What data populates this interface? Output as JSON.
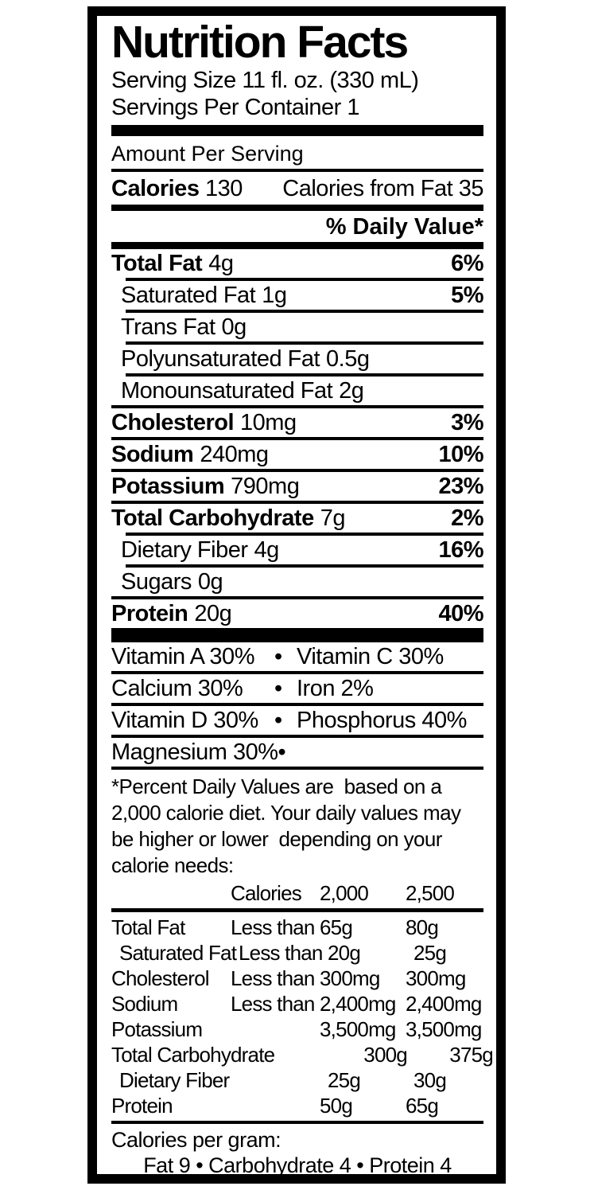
{
  "colors": {
    "text": "#000000",
    "background": "#ffffff"
  },
  "title": "Nutrition Facts",
  "serving": {
    "size": "Serving Size 11 fl. oz. (330 mL)",
    "per_container": "Servings Per Container 1"
  },
  "amount_per_serving": "Amount Per Serving",
  "calories": {
    "label": "Calories",
    "value": "130",
    "from_fat": "Calories from Fat 35"
  },
  "daily_value_header": "% Daily Value*",
  "nutrients": [
    {
      "name": "Total Fat",
      "amount": "4g",
      "dv": "6%",
      "bold": true,
      "indent": false
    },
    {
      "name": "Saturated Fat",
      "amount": "1g",
      "dv": "5%",
      "bold": false,
      "indent": true
    },
    {
      "name": "Trans Fat",
      "amount": "0g",
      "dv": "",
      "bold": false,
      "indent": true
    },
    {
      "name": "Polyunsaturated Fat",
      "amount": "0.5g",
      "dv": "",
      "bold": false,
      "indent": true
    },
    {
      "name": "Monounsaturated Fat",
      "amount": "2g",
      "dv": "",
      "bold": false,
      "indent": true
    },
    {
      "name": "Cholesterol",
      "amount": "10mg",
      "dv": "3%",
      "bold": true,
      "indent": false
    },
    {
      "name": "Sodium",
      "amount": "240mg",
      "dv": "10%",
      "bold": true,
      "indent": false
    },
    {
      "name": "Potassium",
      "amount": "790mg",
      "dv": "23%",
      "bold": true,
      "indent": false
    },
    {
      "name": "Total Carbohydrate",
      "amount": "7g",
      "dv": "2%",
      "bold": true,
      "indent": false
    },
    {
      "name": "Dietary Fiber",
      "amount": "4g",
      "dv": "16%",
      "bold": false,
      "indent": true
    },
    {
      "name": "Sugars",
      "amount": "0g",
      "dv": "",
      "bold": false,
      "indent": true
    },
    {
      "name": "Protein",
      "amount": "20g",
      "dv": "40%",
      "bold": true,
      "indent": false
    }
  ],
  "vitamins": {
    "bullet": "•",
    "rows": [
      {
        "left": "Vitamin A 30%",
        "right": "Vitamin C 30%"
      },
      {
        "left": "Calcium 30%",
        "right": "Iron 2%"
      },
      {
        "left": "Vitamin D 30%",
        "right": "Phosphorus 40%"
      },
      {
        "left": "Magnesium 30%",
        "right": ""
      }
    ]
  },
  "footnote_lines": [
    "*Percent Daily Values are  based on a",
    "2,000 calorie diet. Your daily values may",
    "be higher or lower  depending on your",
    "calorie needs:"
  ],
  "dv_table": {
    "header": {
      "col2": "Calories",
      "col3": "2,000",
      "col4": "2,500"
    },
    "rows": [
      {
        "name": "Total Fat",
        "qualifier": "Less than",
        "v2000": "65g",
        "v2500": "80g",
        "indent": false
      },
      {
        "name": "Saturated Fat",
        "qualifier": "Less than",
        "v2000": "20g",
        "v2500": "25g",
        "indent": true
      },
      {
        "name": "Cholesterol",
        "qualifier": "Less than",
        "v2000": "300mg",
        "v2500": "300mg",
        "indent": false
      },
      {
        "name": "Sodium",
        "qualifier": "Less than",
        "v2000": "2,400mg",
        "v2500": "2,400mg",
        "indent": false
      },
      {
        "name": "Potassium",
        "qualifier": "",
        "v2000": "3,500mg",
        "v2500": "3,500mg",
        "indent": false
      },
      {
        "name": "Total Carbohydrate",
        "qualifier": "",
        "v2000": "300g",
        "v2500": "375g",
        "indent": false
      },
      {
        "name": "Dietary Fiber",
        "qualifier": "",
        "v2000": "25g",
        "v2500": "30g",
        "indent": true
      },
      {
        "name": "Protein",
        "qualifier": "",
        "v2000": "50g",
        "v2500": "65g",
        "indent": false
      }
    ]
  },
  "calories_per_gram": {
    "label": "Calories per gram:",
    "detail": "Fat 9 • Carbohydrate 4 • Protein 4"
  }
}
